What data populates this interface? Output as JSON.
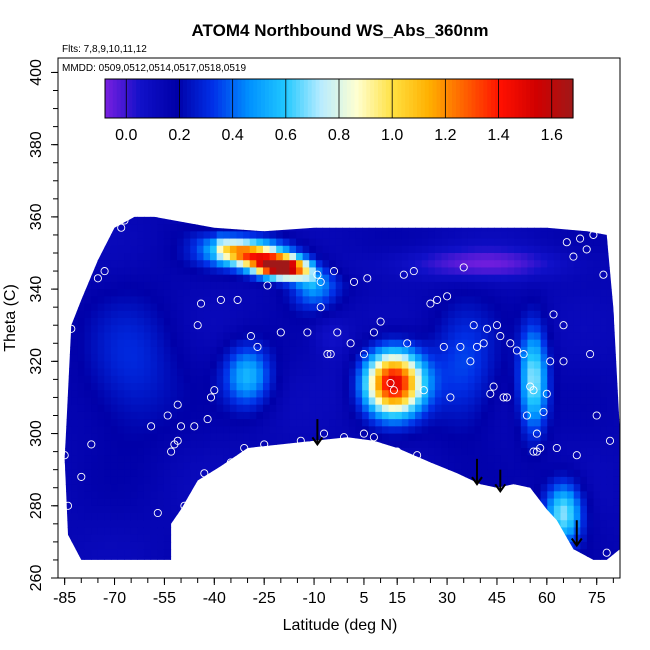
{
  "chart_data": {
    "type": "heatmap",
    "title": "ATOM4 Northbound WS_Abs_360nm",
    "flights_label": "Flts: 7,8,9,10,11,12",
    "dates_label": "MMDD: 0509,0512,0514,0517,0518,0519",
    "xlabel": "Latitude (deg N)",
    "ylabel": "Theta (C)",
    "xlim": [
      -87,
      82
    ],
    "ylim": [
      260,
      404
    ],
    "x_ticks": [
      "-85",
      "-70",
      "-55",
      "-40",
      "-25",
      "-10",
      "5",
      "15",
      "30",
      "45",
      "60",
      "75"
    ],
    "y_ticks": [
      "260",
      "280",
      "300",
      "320",
      "340",
      "360",
      "380",
      "400"
    ],
    "colorbar": {
      "range": [
        -0.08,
        1.68
      ],
      "tick_labels": [
        "0.0",
        "0.2",
        "0.4",
        "0.6",
        "0.8",
        "1.0",
        "1.2",
        "1.4",
        "1.6"
      ],
      "colors": [
        "#7a1fe0",
        "#1010c8",
        "#0000a8",
        "#0030e8",
        "#0090ff",
        "#20c8ff",
        "#b8ecff",
        "#ffffd0",
        "#ffe040",
        "#ffb000",
        "#ff6000",
        "#ff1000",
        "#d00000",
        "#a01818"
      ]
    },
    "data_boundary": [
      [
        -85,
        293
      ],
      [
        -83,
        330
      ],
      [
        -80,
        337
      ],
      [
        -75,
        348
      ],
      [
        -70,
        357
      ],
      [
        -64,
        360
      ],
      [
        -58,
        360
      ],
      [
        -52,
        359
      ],
      [
        -40,
        357
      ],
      [
        -25,
        356
      ],
      [
        -10,
        357
      ],
      [
        5,
        357
      ],
      [
        20,
        357
      ],
      [
        35,
        357
      ],
      [
        50,
        357
      ],
      [
        60,
        357
      ],
      [
        72,
        356
      ],
      [
        78,
        355
      ],
      [
        80,
        335
      ],
      [
        82,
        300
      ],
      [
        82,
        268
      ],
      [
        78,
        265
      ],
      [
        74,
        265
      ],
      [
        68,
        268
      ],
      [
        63,
        276
      ],
      [
        60,
        279
      ],
      [
        55,
        285
      ],
      [
        50,
        286
      ],
      [
        45,
        285
      ],
      [
        40,
        286
      ],
      [
        33,
        289
      ],
      [
        25,
        292
      ],
      [
        15,
        296
      ],
      [
        8,
        298
      ],
      [
        0,
        299
      ],
      [
        -10,
        298
      ],
      [
        -20,
        297
      ],
      [
        -30,
        296
      ],
      [
        -38,
        291
      ],
      [
        -45,
        287
      ],
      [
        -50,
        279
      ],
      [
        -53,
        275
      ],
      [
        -53,
        265
      ],
      [
        -80,
        265
      ],
      [
        -84,
        272
      ]
    ],
    "features": [
      {
        "x": 14,
        "y": 314,
        "sx": 6,
        "sy": 6,
        "value": 1.5
      },
      {
        "x": -20,
        "y": 346,
        "sx": 5,
        "sy": 2,
        "value": 1.4
      },
      {
        "x": -30,
        "y": 350,
        "sx": 9,
        "sy": 3,
        "value": 0.8
      },
      {
        "x": 56,
        "y": 315,
        "sx": 3,
        "sy": 10,
        "value": 0.7
      },
      {
        "x": 65,
        "y": 278,
        "sx": 4,
        "sy": 6,
        "value": 0.7
      },
      {
        "x": -30,
        "y": 316,
        "sx": 5,
        "sy": 6,
        "value": 0.55
      },
      {
        "x": -10,
        "y": 340,
        "sx": 5,
        "sy": 4,
        "value": 0.45
      },
      {
        "x": -65,
        "y": 318,
        "sx": 10,
        "sy": 14,
        "value": 0.3
      },
      {
        "x": 35,
        "y": 318,
        "sx": 7,
        "sy": 12,
        "value": 0.35
      },
      {
        "x": 40,
        "y": 347,
        "sx": 18,
        "sy": 3,
        "value": -0.05
      },
      {
        "x": -5,
        "y": 327,
        "sx": 4,
        "sy": 4,
        "value": 0.05
      },
      {
        "x": 0,
        "y": 315,
        "sx": 5,
        "sy": 6,
        "value": 0.1
      }
    ],
    "observations": [
      [
        -85,
        294
      ],
      [
        -84,
        280
      ],
      [
        -83,
        329
      ],
      [
        -80,
        288
      ],
      [
        -77,
        297
      ],
      [
        -75,
        343
      ],
      [
        -73,
        345
      ],
      [
        -68,
        357
      ],
      [
        -67,
        359
      ],
      [
        -59,
        302
      ],
      [
        -57,
        278
      ],
      [
        -54,
        305
      ],
      [
        -53,
        295
      ],
      [
        -52,
        297
      ],
      [
        -51,
        298
      ],
      [
        -51,
        308
      ],
      [
        -50,
        302
      ],
      [
        -49,
        280
      ],
      [
        -48,
        276
      ],
      [
        -46,
        302
      ],
      [
        -45,
        330
      ],
      [
        -44,
        336
      ],
      [
        -43,
        289
      ],
      [
        -42,
        304
      ],
      [
        -41,
        310
      ],
      [
        -40,
        312
      ],
      [
        -38,
        337
      ],
      [
        -35,
        292
      ],
      [
        -33,
        337
      ],
      [
        -31,
        296
      ],
      [
        -29,
        327
      ],
      [
        -27,
        324
      ],
      [
        -25,
        297
      ],
      [
        -24,
        341
      ],
      [
        -20,
        328
      ],
      [
        -14,
        298
      ],
      [
        -12,
        328
      ],
      [
        -9,
        344
      ],
      [
        -8,
        342
      ],
      [
        -8,
        335
      ],
      [
        -7,
        300
      ],
      [
        -6,
        322
      ],
      [
        -5,
        322
      ],
      [
        -4,
        345
      ],
      [
        -3,
        328
      ],
      [
        -1,
        299
      ],
      [
        1,
        325
      ],
      [
        2,
        342
      ],
      [
        5,
        322
      ],
      [
        5,
        300
      ],
      [
        6,
        343
      ],
      [
        8,
        328
      ],
      [
        8,
        299
      ],
      [
        10,
        331
      ],
      [
        13,
        314
      ],
      [
        14,
        312
      ],
      [
        15,
        295
      ],
      [
        17,
        344
      ],
      [
        18,
        325
      ],
      [
        20,
        345
      ],
      [
        21,
        294
      ],
      [
        23,
        312
      ],
      [
        25,
        336
      ],
      [
        27,
        337
      ],
      [
        29,
        324
      ],
      [
        30,
        338
      ],
      [
        31,
        310
      ],
      [
        34,
        324
      ],
      [
        35,
        346
      ],
      [
        37,
        320
      ],
      [
        38,
        330
      ],
      [
        39,
        324
      ],
      [
        41,
        325
      ],
      [
        42,
        329
      ],
      [
        43,
        311
      ],
      [
        44,
        313
      ],
      [
        45,
        330
      ],
      [
        46,
        327
      ],
      [
        47,
        310
      ],
      [
        48,
        310
      ],
      [
        49,
        325
      ],
      [
        51,
        323
      ],
      [
        53,
        322
      ],
      [
        54,
        305
      ],
      [
        55,
        313
      ],
      [
        56,
        312
      ],
      [
        56,
        295
      ],
      [
        57,
        300
      ],
      [
        57,
        295
      ],
      [
        58,
        296
      ],
      [
        59,
        306
      ],
      [
        60,
        311
      ],
      [
        61,
        320
      ],
      [
        62,
        333
      ],
      [
        63,
        296
      ],
      [
        65,
        320
      ],
      [
        65,
        330
      ],
      [
        66,
        353
      ],
      [
        68,
        349
      ],
      [
        69,
        294
      ],
      [
        70,
        354
      ],
      [
        72,
        351
      ],
      [
        73,
        322
      ],
      [
        74,
        355
      ],
      [
        75,
        305
      ],
      [
        77,
        344
      ],
      [
        78,
        267
      ],
      [
        79,
        298
      ]
    ],
    "arrows": [
      {
        "x": -9,
        "y_top": 304,
        "y_bottom": 297
      },
      {
        "x": 39,
        "y_top": 293,
        "y_bottom": 286
      },
      {
        "x": 46,
        "y_top": 290,
        "y_bottom": 284
      },
      {
        "x": 69,
        "y_top": 276,
        "y_bottom": 269
      }
    ]
  }
}
